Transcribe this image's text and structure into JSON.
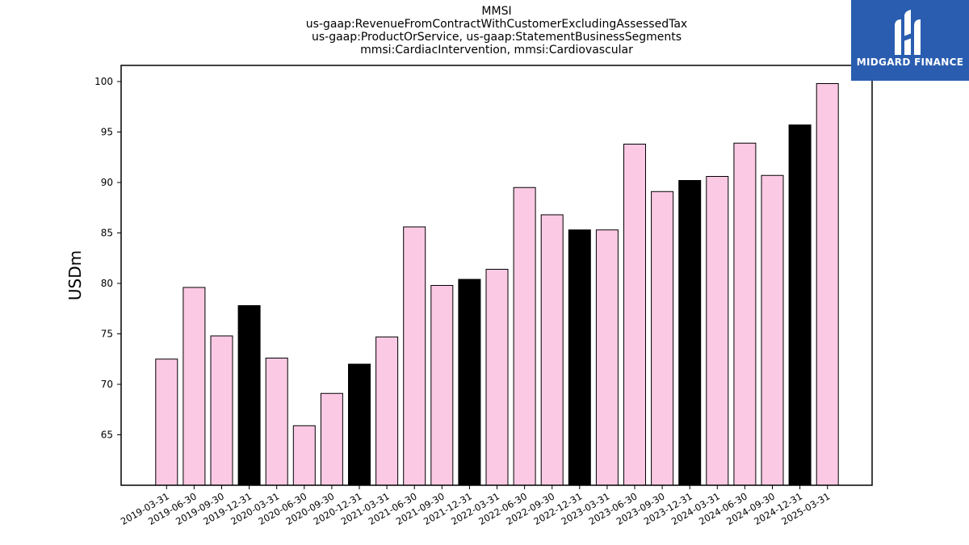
{
  "chart_data": {
    "type": "bar",
    "title": [
      "MMSI",
      "us-gaap:RevenueFromContractWithCustomerExcludingAssessedTax",
      "us-gaap:ProductOrService, us-gaap:StatementBusinessSegments",
      "mmsi:CardiacIntervention, mmsi:Cardiovascular"
    ],
    "ylabel": "USDm",
    "xlabel": "",
    "ylim": [
      60,
      101.6
    ],
    "yticks": [
      65,
      70,
      75,
      80,
      85,
      90,
      95,
      100
    ],
    "grid": false,
    "categories": [
      "2019-03-31",
      "2019-06-30",
      "2019-09-30",
      "2019-12-31",
      "2020-03-31",
      "2020-06-30",
      "2020-09-30",
      "2020-12-31",
      "2021-03-31",
      "2021-06-30",
      "2021-09-30",
      "2021-12-31",
      "2022-03-31",
      "2022-06-30",
      "2022-09-30",
      "2022-12-31",
      "2023-03-31",
      "2023-06-30",
      "2023-09-30",
      "2023-12-31",
      "2024-03-31",
      "2024-06-30",
      "2024-09-30",
      "2024-12-31",
      "2025-03-31"
    ],
    "values": [
      72.5,
      79.6,
      74.8,
      77.8,
      72.6,
      65.9,
      69.1,
      72.0,
      74.7,
      85.6,
      79.8,
      80.4,
      81.4,
      89.5,
      86.8,
      85.3,
      85.3,
      93.8,
      89.1,
      90.2,
      90.6,
      93.9,
      90.7,
      95.7,
      99.8
    ],
    "highlight_color": "#000000",
    "base_color": "#fbc9e4",
    "highlight_categories": [
      "2019-12-31",
      "2020-12-31",
      "2021-12-31",
      "2022-12-31",
      "2023-12-31",
      "2024-12-31"
    ]
  },
  "logo": {
    "text": "MIDGARD FINANCE",
    "icon": "midgard-logo-icon",
    "color": "#2a5db0"
  }
}
